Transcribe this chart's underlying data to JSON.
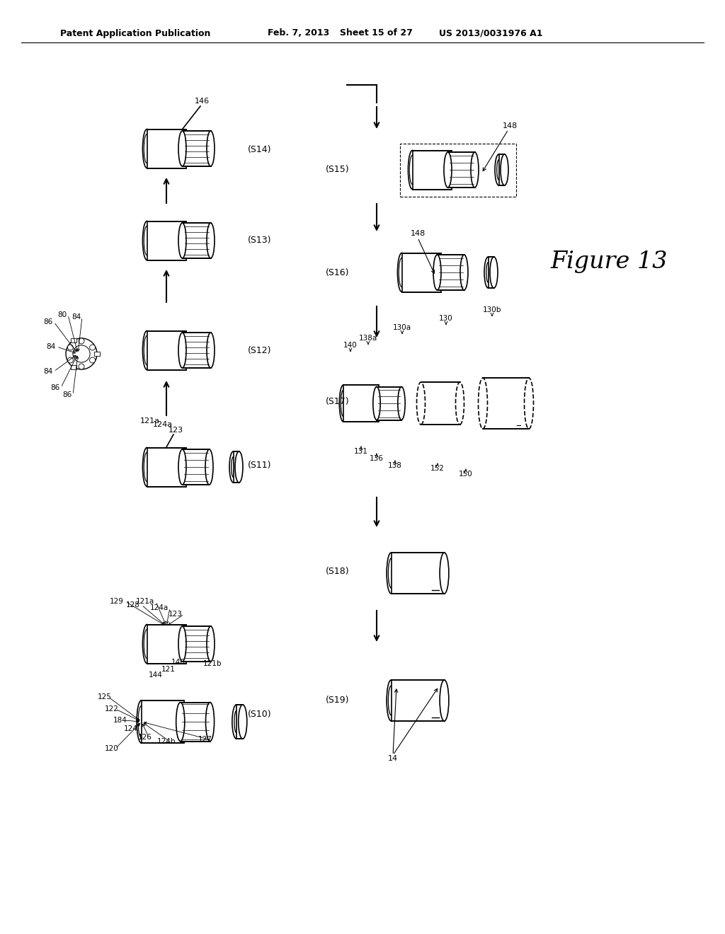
{
  "page_title_left": "Patent Application Publication",
  "page_title_center": "Feb. 7, 2013   Sheet 15 of 27",
  "page_title_right": "US 2013/0031976 A1",
  "figure_label": "Figure 13",
  "background_color": "#ffffff",
  "text_color": "#000000",
  "line_width": 1.2
}
